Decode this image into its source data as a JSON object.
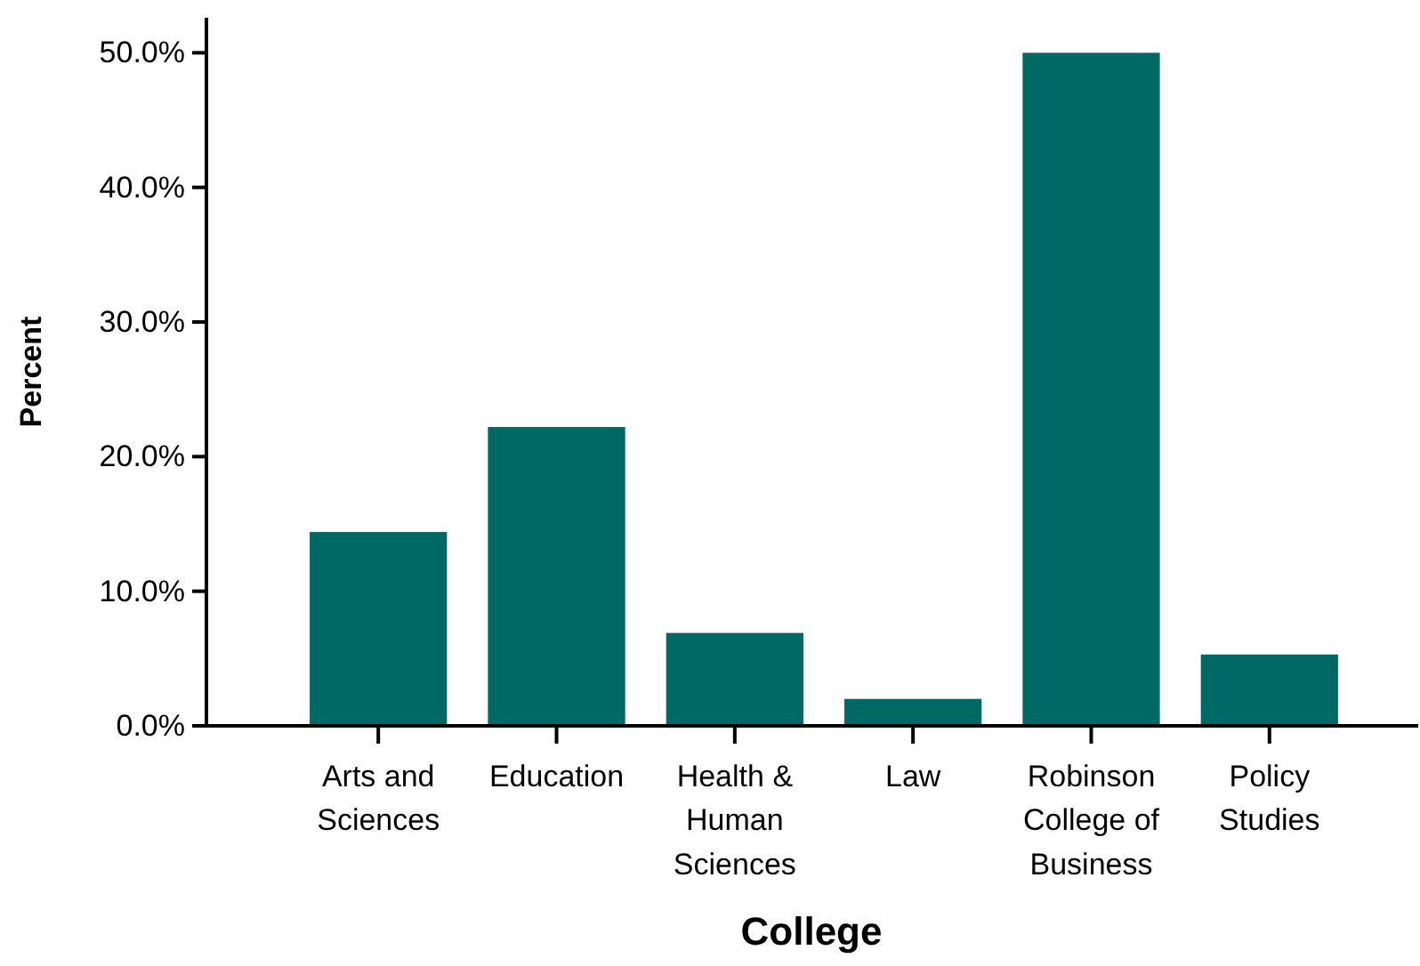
{
  "chart_data": {
    "type": "bar",
    "xlabel": "College",
    "ylabel": "Percent",
    "categories": [
      "Arts and Sciences",
      "Education",
      "Health & Human Sciences",
      "Law",
      "Robinson College of Business",
      "Policy Studies"
    ],
    "values": [
      14.4,
      22.2,
      6.9,
      2.0,
      50.0,
      5.3
    ],
    "color": "#006865",
    "ylim": [
      0,
      52.6
    ],
    "yticks": [
      {
        "value": 0,
        "label": "0.0%"
      },
      {
        "value": 10,
        "label": "10.0%"
      },
      {
        "value": 20,
        "label": "20.0%"
      },
      {
        "value": 30,
        "label": "30.0%"
      },
      {
        "value": 40,
        "label": "40.0%"
      },
      {
        "value": 50,
        "label": "50.0%"
      }
    ],
    "grid": false
  }
}
